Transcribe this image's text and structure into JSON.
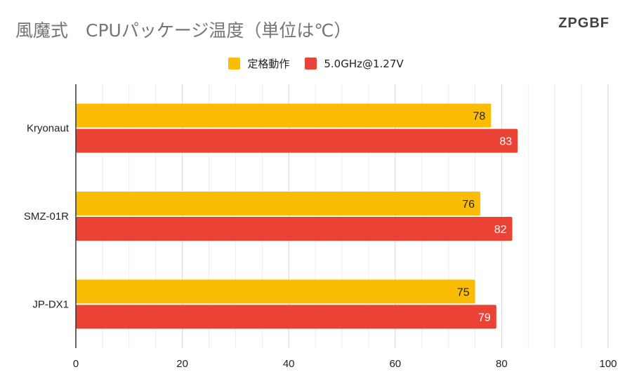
{
  "title": "風魔式　CPUパッケージ温度（単位は℃）",
  "brand": "ZPGBF",
  "colors": {
    "stock": "#FBBC04",
    "oc": "#EA4335"
  },
  "chart_data": {
    "type": "bar",
    "orientation": "horizontal",
    "title": "風魔式　CPUパッケージ温度（単位は℃）",
    "categories": [
      "Kryonaut",
      "SMZ-01R",
      "JP-DX1"
    ],
    "series": [
      {
        "name": "定格動作",
        "values": [
          78,
          76,
          75
        ],
        "color": "#FBBC04"
      },
      {
        "name": "5.0GHz@1.27V",
        "values": [
          83,
          82,
          79
        ],
        "color": "#EA4335"
      }
    ],
    "xlim": [
      0,
      100
    ],
    "x_ticks": [
      0,
      20,
      40,
      60,
      80,
      100
    ],
    "grid": true,
    "legend": "top-center"
  }
}
